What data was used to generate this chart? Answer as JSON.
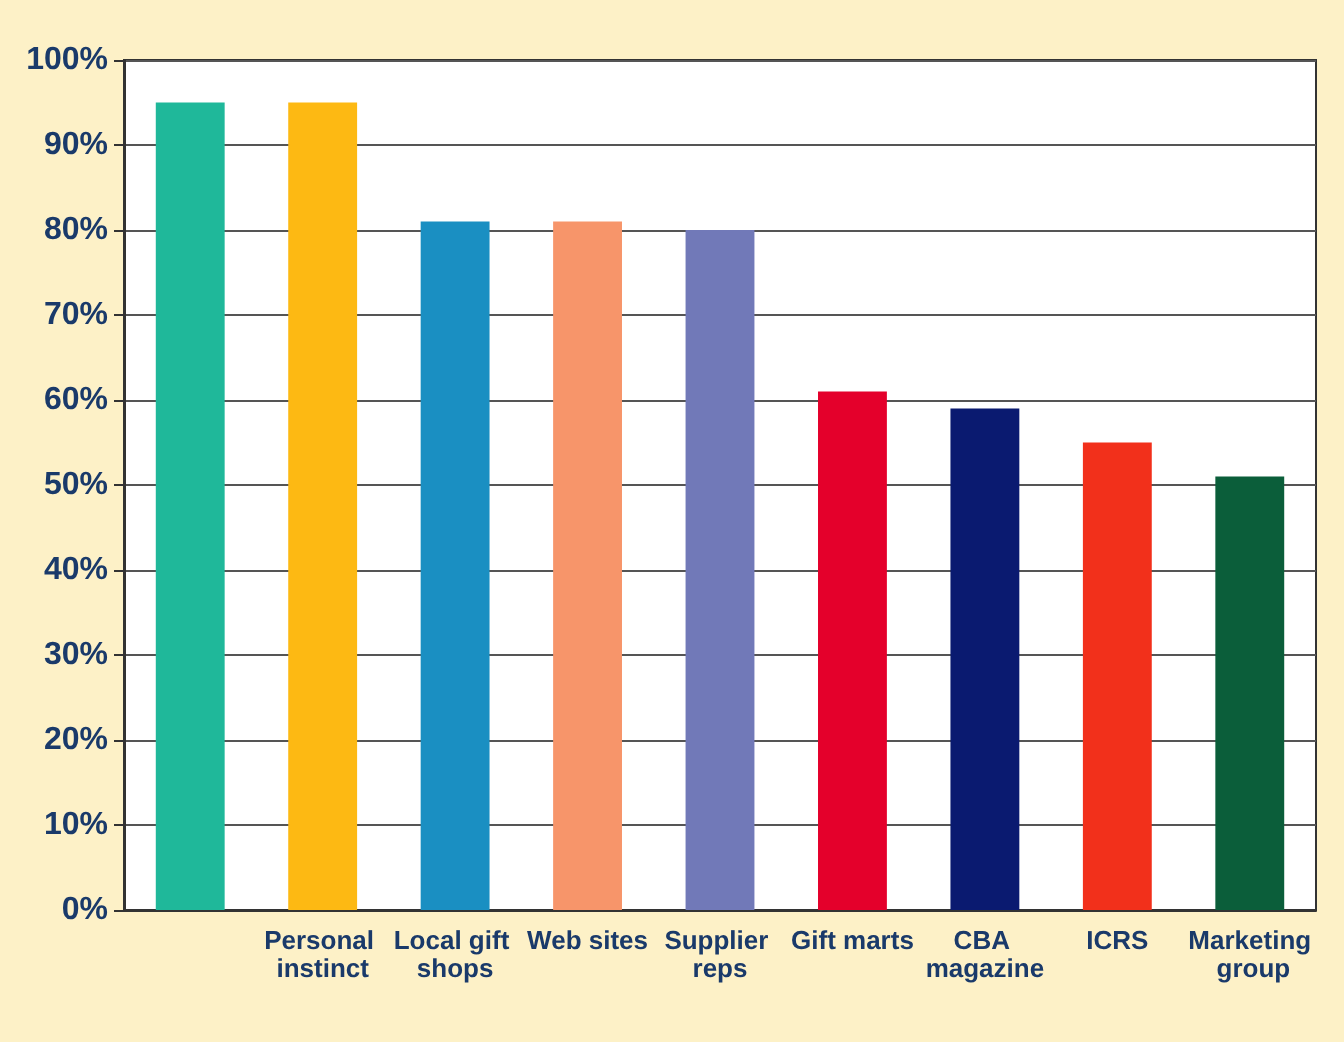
{
  "chart_data": {
    "type": "bar",
    "categories": [
      null,
      "Personal instinct",
      "Local gift shops",
      "Web sites",
      "Supplier reps",
      "Gift marts",
      "CBA magazine",
      "ICRS",
      "Marketing group"
    ],
    "values": [
      95,
      95,
      81,
      81,
      80,
      61,
      59,
      55,
      51
    ],
    "colors": [
      "#1fb89a",
      "#fdb913",
      "#1a8fc2",
      "#f7956a",
      "#7179b8",
      "#e4002b",
      "#0a1a70",
      "#f2301b",
      "#0b5e3a"
    ],
    "ylim": [
      0,
      100
    ],
    "yticks": [
      {
        "value": 0,
        "label": "0%"
      },
      {
        "value": 10,
        "label": "10%"
      },
      {
        "value": 20,
        "label": "20%"
      },
      {
        "value": 30,
        "label": "30%"
      },
      {
        "value": 40,
        "label": "40%"
      },
      {
        "value": 50,
        "label": "50%"
      },
      {
        "value": 60,
        "label": "60%"
      },
      {
        "value": 70,
        "label": "70%"
      },
      {
        "value": 80,
        "label": "80%"
      },
      {
        "value": 90,
        "label": "90%"
      },
      {
        "value": 100,
        "label": "100%"
      }
    ],
    "grid": "y"
  }
}
